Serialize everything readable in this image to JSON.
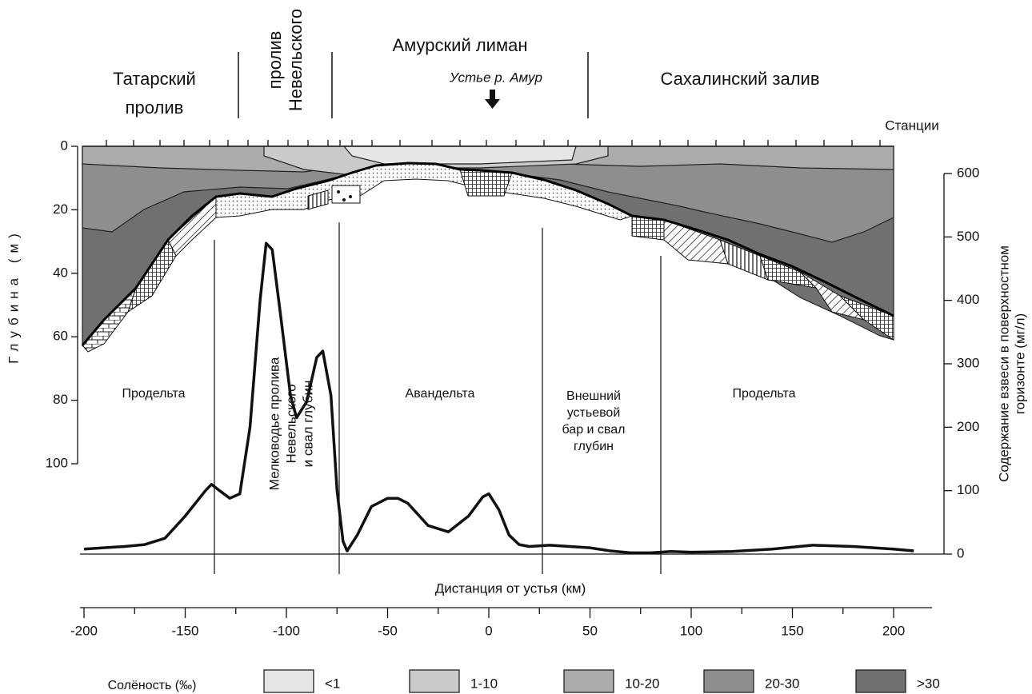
{
  "chart_data": {
    "type": "line",
    "annotations": [
      {
        "lines": [
          "Татарский",
          "пролив"
        ]
      },
      {
        "lines": [
          "пролив",
          "Невельского"
        ]
      },
      {
        "lines": [
          "Амурский лиман"
        ]
      },
      {
        "lines": [
          "Устье р. Амур"
        ]
      },
      {
        "lines": [
          "Сахалинский залив"
        ]
      },
      {
        "lines": [
          "Станции"
        ]
      },
      {
        "lines": [
          "Продельта"
        ]
      },
      {
        "lines": [
          "Мелководье пролива",
          "Невельского",
          "и свал глубин"
        ]
      },
      {
        "lines": [
          "Авандельта"
        ]
      },
      {
        "lines": [
          "Внешний",
          "устьевой",
          "бар и свал",
          "глубин"
        ]
      },
      {
        "lines": [
          "Продельта"
        ]
      }
    ],
    "ylabel": "Глубина (м)",
    "y2label": [
      "Содержание взвеси в поверхностном",
      "горизонте (мг/л)"
    ],
    "xlabel": "Дистанция от устья (км)",
    "xlim": [
      -200,
      200
    ],
    "xticks": [
      -200,
      -150,
      -100,
      -50,
      0,
      50,
      100,
      150,
      200
    ],
    "ylim": [
      100,
      0
    ],
    "yticks": [
      0,
      20,
      40,
      60,
      80,
      100
    ],
    "y2lim": [
      0,
      600
    ],
    "y2ticks": [
      0,
      100,
      200,
      300,
      400,
      500,
      600
    ],
    "series": [
      {
        "color": "#111111",
        "axis": "y2",
        "x": [
          -200,
          -180,
          -170,
          -160,
          -150,
          -140,
          -137,
          -133,
          -128,
          -123,
          -118,
          -113,
          -110,
          -107,
          -103,
          -98,
          -95,
          -90,
          -85,
          -82,
          -78,
          -75,
          -72,
          -70,
          -65,
          -58,
          -50,
          -45,
          -40,
          -30,
          -20,
          -10,
          -3,
          0,
          5,
          10,
          15,
          20,
          30,
          40,
          50,
          60,
          70,
          80,
          90,
          100,
          120,
          140,
          160,
          180,
          200,
          210
        ],
        "values": [
          8,
          12,
          15,
          25,
          60,
          100,
          110,
          100,
          88,
          95,
          200,
          400,
          490,
          480,
          380,
          250,
          215,
          240,
          310,
          320,
          250,
          100,
          20,
          5,
          30,
          75,
          88,
          88,
          80,
          45,
          35,
          60,
          90,
          95,
          70,
          30,
          15,
          12,
          14,
          12,
          10,
          5,
          2,
          2,
          4,
          3,
          4,
          8,
          14,
          12,
          8,
          5
        ]
      }
    ],
    "legend": {
      "title": "Солёность (‰)",
      "items": [
        {
          "label": "<1",
          "color": "#e6e6e6"
        },
        {
          "label": "1-10",
          "color": "#cacaca"
        },
        {
          "label": "10-20",
          "color": "#ababab"
        },
        {
          "label": "20-30",
          "color": "#8e8e8e"
        },
        {
          "label": ">30",
          "color": "#707070"
        }
      ]
    }
  }
}
